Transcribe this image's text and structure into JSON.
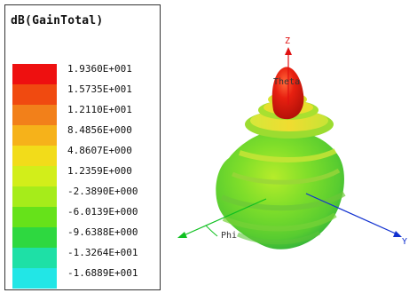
{
  "legend": {
    "title": "dB(GainTotal)",
    "values": [
      "1.9360E+001",
      "1.5735E+001",
      "1.2110E+001",
      "8.4856E+000",
      "4.8607E+000",
      "1.2359E+000",
      "-2.3890E+000",
      "-6.0139E+000",
      "-9.6388E+000",
      "-1.3264E+001",
      "-1.6889E+001"
    ],
    "colors": [
      "#ee1010",
      "#f04a10",
      "#f2801a",
      "#f6b21a",
      "#f2dc1a",
      "#d2ee1a",
      "#a6ec1a",
      "#66e21a",
      "#2ed840",
      "#1ee0a6",
      "#22e6e6"
    ]
  },
  "axes": {
    "z_label": "Z",
    "theta_label": "Theta",
    "phi_label": "Phi",
    "y_label": "Y",
    "z_color": "#e01010",
    "x_color": "#10c020",
    "y_color": "#1030d0"
  }
}
